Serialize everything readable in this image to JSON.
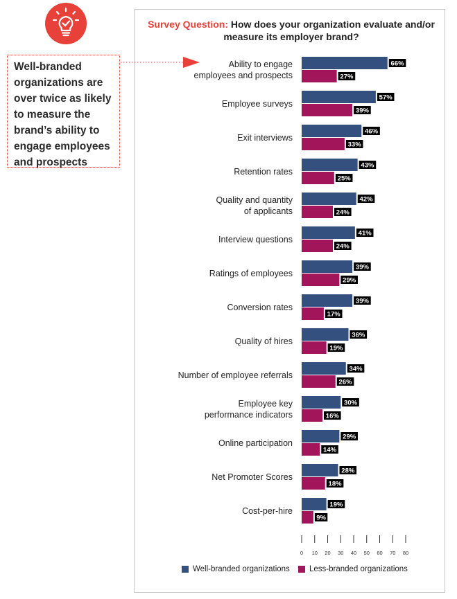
{
  "callout": {
    "text": "Well-branded organizations are over twice as likely to measure the brand’s ability to engage employees and prospects"
  },
  "title": {
    "prefix": "Survey Question:",
    "text": "How does your organization evaluate and/or measure its employer brand?"
  },
  "icon": "lightbulb-check-icon",
  "colors": {
    "accent": "#e8413a",
    "well": "#34507f",
    "less": "#a3155b",
    "label_bg": "#000000"
  },
  "legend": {
    "well_label": "Well-branded organizations",
    "less_label": "Less-branded organizations"
  },
  "chart_data": {
    "type": "bar",
    "orientation": "horizontal",
    "categories": [
      "Ability to engage\nemployees and prospects",
      "Employee surveys",
      "Exit interviews",
      "Retention rates",
      "Quality and quantity\nof applicants",
      "Interview questions",
      "Ratings of employees",
      "Conversion rates",
      "Quality of hires",
      "Number of employee referrals",
      "Employee key\nperformance indicators",
      "Online participation",
      "Net Promoter Scores",
      "Cost-per-hire"
    ],
    "series": [
      {
        "name": "Well-branded organizations",
        "values": [
          66,
          57,
          46,
          43,
          42,
          41,
          39,
          39,
          36,
          34,
          30,
          29,
          28,
          19
        ]
      },
      {
        "name": "Less-branded organizations",
        "values": [
          27,
          39,
          33,
          25,
          24,
          24,
          29,
          17,
          19,
          26,
          16,
          14,
          18,
          9
        ]
      }
    ],
    "value_suffix": "%",
    "xlim": [
      0,
      80
    ],
    "xticks": [
      0,
      10,
      20,
      30,
      40,
      50,
      60,
      70,
      80
    ],
    "title": "Survey Question: How does your organization evaluate and/or measure its employer brand?",
    "legend_position": "bottom"
  }
}
